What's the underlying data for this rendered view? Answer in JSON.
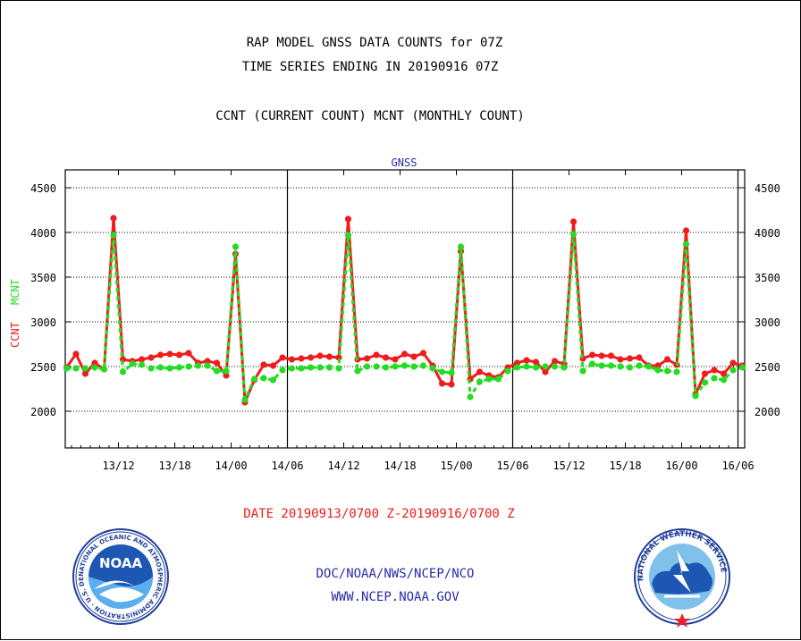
{
  "header": {
    "title_line1": "RAP MODEL GNSS DATA COUNTS for 07Z",
    "title_line2": "TIME SERIES ENDING IN 20190916 07Z",
    "subtitle": "CCNT (CURRENT COUNT) MCNT (MONTHLY COUNT)"
  },
  "footer": {
    "date_range": "DATE 20190913/0700 Z-20190916/0700 Z",
    "org_line": "DOC/NOAA/NWS/NCEP/NCO",
    "url_line": "WWW.NCEP.NOAA.GOV"
  },
  "logos": {
    "noaa_label": "NOAA",
    "noaa_ring_text": "NATIONAL OCEANIC AND ATMOSPHERIC ADMINISTRATION · U.S. DEPARTMENT OF COMMERCE ·",
    "nws_ring_text": "NATIONAL WEATHER SERVICE"
  },
  "colors": {
    "ccnt": "#ee1c1c",
    "mcnt": "#22dd22",
    "title": "#000000",
    "date_range": "#ee1c1c",
    "org": "#2a2aa8",
    "panel": "#2a2aa8"
  },
  "chart_data": {
    "type": "line",
    "title": "GNSS",
    "ylabel_ccnt": "CCNT",
    "ylabel_mcnt": "MCNT",
    "ylim": [
      1570,
      4700
    ],
    "yticks": [
      2000,
      2500,
      3000,
      3500,
      4000,
      4500
    ],
    "ytick_labels": [
      "2000",
      "2500",
      "3000",
      "3500",
      "4000",
      "4500"
    ],
    "xlim": [
      0,
      72.5
    ],
    "xticks": [
      6,
      12,
      18,
      24,
      30,
      36,
      42,
      48,
      54,
      60,
      66,
      72
    ],
    "xtick_labels": [
      "13/12",
      "13/18",
      "14/00",
      "14/06",
      "14/12",
      "14/18",
      "15/00",
      "15/06",
      "15/12",
      "15/18",
      "16/00",
      "16/06"
    ],
    "day_lines": [
      24,
      48,
      72
    ],
    "grid": true,
    "series": [
      {
        "name": "CCNT",
        "x": [
          0,
          1,
          2,
          3,
          4,
          5,
          6,
          7,
          8,
          9,
          10,
          11,
          12,
          13,
          14,
          15,
          16,
          17,
          18,
          19,
          20,
          21,
          22,
          23,
          24,
          25,
          26,
          27,
          28,
          29,
          30,
          31,
          32,
          33,
          34,
          35,
          36,
          37,
          38,
          39,
          40,
          41,
          42,
          43,
          44,
          45,
          46,
          47,
          48,
          49,
          50,
          51,
          52,
          53,
          54,
          55,
          56,
          57,
          58,
          59,
          60,
          61,
          62,
          63,
          64,
          65,
          66,
          67,
          68,
          69,
          70,
          71,
          72
        ],
        "values": [
          2490,
          2640,
          2420,
          2540,
          2470,
          4160,
          2580,
          2560,
          2580,
          2600,
          2630,
          2640,
          2630,
          2650,
          2540,
          2560,
          2540,
          2400,
          3760,
          2100,
          2350,
          2520,
          2510,
          2600,
          2580,
          2590,
          2600,
          2620,
          2610,
          2600,
          4150,
          2580,
          2590,
          2630,
          2600,
          2580,
          2640,
          2610,
          2650,
          2510,
          2310,
          2300,
          3790,
          2360,
          2440,
          2400,
          2380,
          2490,
          2540,
          2570,
          2550,
          2440,
          2560,
          2530,
          4120,
          2590,
          2630,
          2620,
          2620,
          2580,
          2590,
          2600,
          2510,
          2510,
          2580,
          2520,
          4020,
          2190,
          2420,
          2460,
          2420,
          2540,
          2510
        ]
      },
      {
        "name": "MCNT",
        "x": [
          0,
          1,
          2,
          3,
          4,
          5,
          6,
          7,
          8,
          9,
          10,
          11,
          12,
          13,
          14,
          15,
          16,
          17,
          18,
          19,
          20,
          21,
          22,
          23,
          24,
          25,
          26,
          27,
          28,
          29,
          30,
          31,
          32,
          33,
          34,
          35,
          36,
          37,
          38,
          39,
          40,
          41,
          42,
          43,
          44,
          45,
          46,
          47,
          48,
          49,
          50,
          51,
          52,
          53,
          54,
          55,
          56,
          57,
          58,
          59,
          60,
          61,
          62,
          63,
          64,
          65,
          66,
          67,
          68,
          69,
          70,
          71,
          72
        ],
        "values": [
          2480,
          2480,
          2480,
          2490,
          2470,
          3970,
          2440,
          2530,
          2520,
          2480,
          2490,
          2480,
          2490,
          2500,
          2510,
          2510,
          2450,
          2450,
          3840,
          2130,
          2360,
          2370,
          2350,
          2460,
          2480,
          2480,
          2490,
          2490,
          2490,
          2480,
          3970,
          2450,
          2500,
          2500,
          2490,
          2500,
          2510,
          2500,
          2510,
          2480,
          2440,
          2430,
          3840,
          2160,
          2330,
          2360,
          2360,
          2450,
          2490,
          2500,
          2490,
          2500,
          2500,
          2490,
          3980,
          2450,
          2530,
          2510,
          2510,
          2500,
          2490,
          2510,
          2500,
          2460,
          2450,
          2440,
          3870,
          2170,
          2320,
          2370,
          2350,
          2460,
          2490
        ]
      }
    ]
  }
}
